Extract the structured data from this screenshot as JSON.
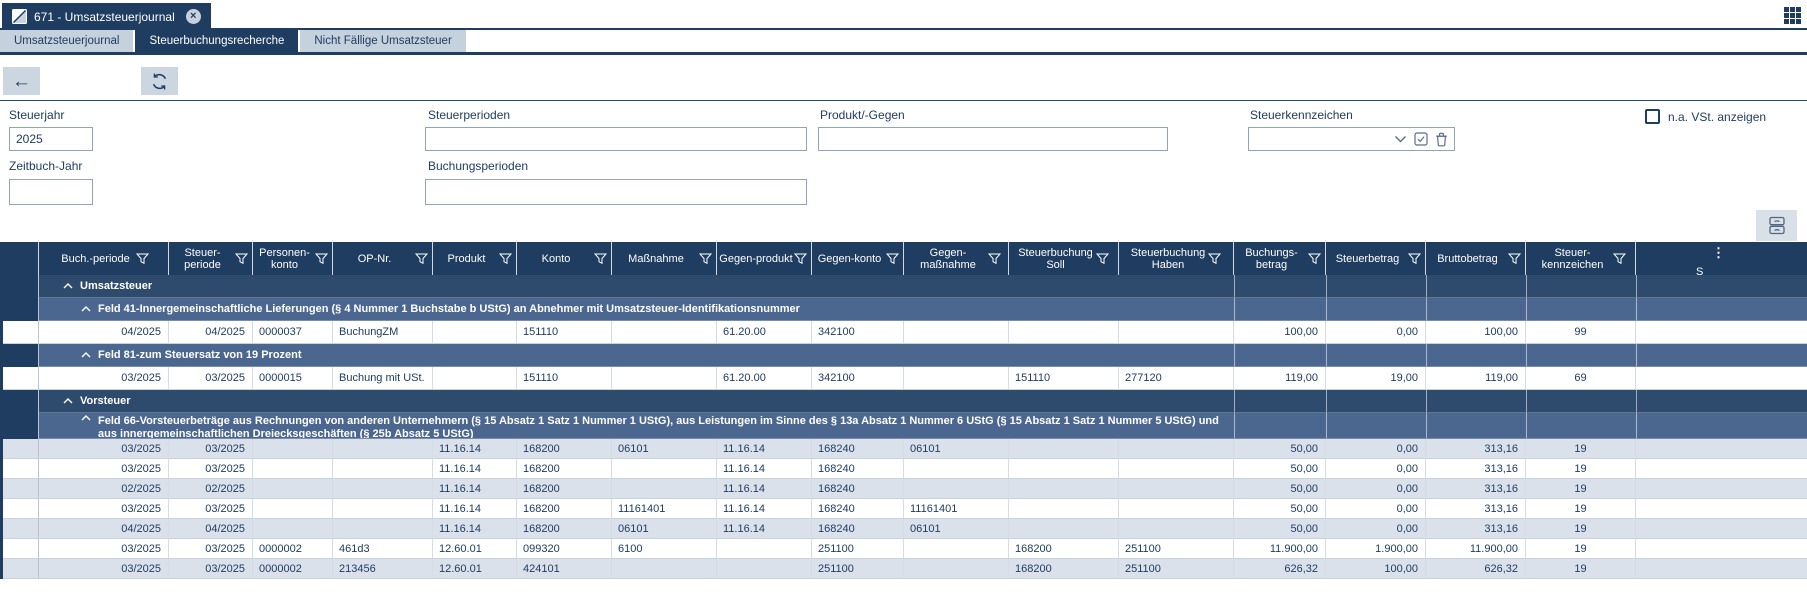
{
  "window": {
    "tab_title": "671 - Umsatzsteuerjournal",
    "close_glyph": "×"
  },
  "nav_tabs": [
    {
      "label": "Umsatzsteuerjournal",
      "active": false
    },
    {
      "label": "Steuerbuchungsrecherche",
      "active": true
    },
    {
      "label": "Nicht Fällige Umsatzsteuer",
      "active": false
    }
  ],
  "toolbar": {
    "back_glyph": "←"
  },
  "filters": {
    "steuerjahr": {
      "label": "Steuerjahr",
      "value": "2025"
    },
    "zeitbuch_jahr": {
      "label": "Zeitbuch-Jahr",
      "value": ""
    },
    "steuerperioden": {
      "label": "Steuerperioden",
      "value": ""
    },
    "buchungsperioden": {
      "label": "Buchungsperioden",
      "value": ""
    },
    "produkt_gegen": {
      "label": "Produkt/-Gegen",
      "value": ""
    },
    "steuerkennzeichen": {
      "label": "Steuerkennzeichen",
      "value": ""
    },
    "na_vst": {
      "label": "n.a. VSt. anzeigen",
      "checked": false
    }
  },
  "icons": {
    "app-logo-icon": "white square with diagonal",
    "close-icon": "circled x",
    "app-grid-icon": "3x3 squares grid",
    "back-icon": "left arrow",
    "refresh-icon": "circular refresh arrows",
    "filter-icon": "funnel outline",
    "collapse-icon": "chevron up",
    "dropdown-icon": "chevron down",
    "multiselect-icon": "checked box",
    "clear-icon": "trash can",
    "drawer-icon": "two stacked drawers",
    "column-menu-icon": "⋮"
  },
  "table": {
    "columns": [
      {
        "key": "buch_periode",
        "label": "Buch.-periode",
        "filter": true
      },
      {
        "key": "steuer_periode",
        "label": "Steuer-periode",
        "filter": true
      },
      {
        "key": "personen_konto",
        "label": "Personen-konto",
        "filter": true
      },
      {
        "key": "op_nr",
        "label": "OP-Nr.",
        "filter": true
      },
      {
        "key": "produkt",
        "label": "Produkt",
        "filter": true
      },
      {
        "key": "konto",
        "label": "Konto",
        "filter": true
      },
      {
        "key": "massnahme",
        "label": "Maßnahme",
        "filter": true
      },
      {
        "key": "gegen_produkt",
        "label": "Gegen-produkt",
        "filter": true
      },
      {
        "key": "gegen_konto",
        "label": "Gegen-konto",
        "filter": true
      },
      {
        "key": "gegen_massnahme",
        "label": "Gegen-maßnahme",
        "filter": true
      },
      {
        "key": "steuerbuchung_soll",
        "label": "Steuerbuchung Soll",
        "filter": true
      },
      {
        "key": "steuerbuchung_haben",
        "label": "Steuerbuchung Haben",
        "filter": true
      },
      {
        "key": "buchungs_betrag",
        "label": "Buchungs-betrag",
        "filter": true
      },
      {
        "key": "steuerbetrag",
        "label": "Steuerbetrag",
        "filter": true
      },
      {
        "key": "bruttobetrag",
        "label": "Bruttobetrag",
        "filter": true
      },
      {
        "key": "steuer_kennzeichen",
        "label": "Steuer-kennzeichen",
        "filter": true
      },
      {
        "key": "clipped_column",
        "label": "S",
        "filter": false,
        "truncated": true,
        "menu_dots": "⋮"
      }
    ],
    "rows": [
      {
        "type": "group",
        "level": 1,
        "label": "Umsatzsteuer"
      },
      {
        "type": "group",
        "level": 2,
        "label": "Feld 41-Innergemeinschaftliche Lieferungen (§ 4 Nummer 1 Buchstabe b UStG) an Abnehmer mit Umsatzsteuer-Identifikationsnummer"
      },
      {
        "type": "data",
        "cells": [
          "04/2025",
          "04/2025",
          "0000037",
          "BuchungZM",
          "",
          "151110",
          "",
          "61.20.00",
          "342100",
          "",
          "",
          "",
          "100,00",
          "0,00",
          "100,00",
          "99",
          ""
        ]
      },
      {
        "type": "group",
        "level": 2,
        "label": "Feld 81-zum Steuersatz von 19 Prozent"
      },
      {
        "type": "data",
        "cells": [
          "03/2025",
          "03/2025",
          "0000015",
          "Buchung mit USt.",
          "",
          "151110",
          "",
          "61.20.00",
          "342100",
          "",
          "151110",
          "277120",
          "119,00",
          "19,00",
          "119,00",
          "69",
          ""
        ]
      },
      {
        "type": "group",
        "level": 1,
        "label": "Vorsteuer"
      },
      {
        "type": "group",
        "level": 2,
        "lines": 2,
        "label": "Feld 66-Vorsteuerbeträge aus Rechnungen von anderen Unternehmern (§ 15 Absatz 1 Satz 1 Nummer 1 UStG), aus Leistungen im Sinne des § 13a Absatz 1 Nummer 6 UStG (§ 15 Absatz 1 Satz 1 Nummer 5 UStG) und aus innergemeinschaftlichen Dreiecksgeschäften (§ 25b Absatz 5 UStG)"
      },
      {
        "type": "data",
        "cells": [
          "03/2025",
          "03/2025",
          "",
          "",
          "11.16.14",
          "168200",
          "06101",
          "11.16.14",
          "168240",
          "06101",
          "",
          "",
          "50,00",
          "0,00",
          "313,16",
          "19",
          ""
        ]
      },
      {
        "type": "data",
        "cells": [
          "03/2025",
          "03/2025",
          "",
          "",
          "11.16.14",
          "168200",
          "",
          "11.16.14",
          "168240",
          "",
          "",
          "",
          "50,00",
          "0,00",
          "313,16",
          "19",
          ""
        ]
      },
      {
        "type": "data",
        "cells": [
          "02/2025",
          "02/2025",
          "",
          "",
          "11.16.14",
          "168200",
          "",
          "11.16.14",
          "168240",
          "",
          "",
          "",
          "50,00",
          "0,00",
          "313,16",
          "19",
          ""
        ]
      },
      {
        "type": "data",
        "cells": [
          "03/2025",
          "03/2025",
          "",
          "",
          "11.16.14",
          "168200",
          "11161401",
          "11.16.14",
          "168240",
          "11161401",
          "",
          "",
          "50,00",
          "0,00",
          "313,16",
          "19",
          ""
        ]
      },
      {
        "type": "data",
        "cells": [
          "04/2025",
          "04/2025",
          "",
          "",
          "11.16.14",
          "168200",
          "06101",
          "11.16.14",
          "168240",
          "06101",
          "",
          "",
          "50,00",
          "0,00",
          "313,16",
          "19",
          ""
        ]
      },
      {
        "type": "data",
        "cells": [
          "03/2025",
          "03/2025",
          "0000002",
          "461d3",
          "12.60.01",
          "099320",
          "6100",
          "",
          "251100",
          "",
          "168200",
          "251100",
          "11.900,00",
          "1.900,00",
          "11.900,00",
          "19",
          ""
        ]
      },
      {
        "type": "data",
        "cells": [
          "03/2025",
          "03/2025",
          "0000002",
          "213456",
          "12.60.01",
          "424101",
          "",
          "",
          "251100",
          "",
          "168200",
          "251100",
          "626,32",
          "100,00",
          "626,32",
          "19",
          ""
        ]
      }
    ]
  },
  "colors": {
    "navy": "#1f3c61",
    "group_level1": "#2e4b6e",
    "group_level2": "#4b668f",
    "row_shade": "#dbe1eb",
    "tab_inactive": "#c6d1de",
    "button_bg": "#ccd6e1"
  }
}
